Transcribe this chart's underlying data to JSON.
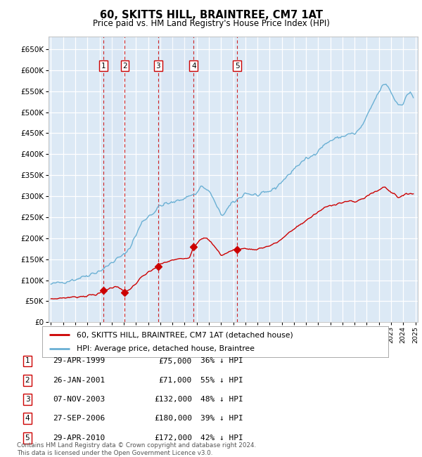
{
  "title": "60, SKITTS HILL, BRAINTREE, CM7 1AT",
  "subtitle": "Price paid vs. HM Land Registry's House Price Index (HPI)",
  "background_color": "#ffffff",
  "plot_bg_color": "#dce9f5",
  "hpi_color": "#6ab0d4",
  "price_color": "#cc0000",
  "grid_color": "#ffffff",
  "ylim": [
    0,
    680000
  ],
  "yticks": [
    0,
    50000,
    100000,
    150000,
    200000,
    250000,
    300000,
    350000,
    400000,
    450000,
    500000,
    550000,
    600000,
    650000
  ],
  "transactions": [
    {
      "num": 1,
      "date": "29-APR-1999",
      "price": 75000,
      "pct": "36%",
      "year": 1999.33
    },
    {
      "num": 2,
      "date": "26-JAN-2001",
      "price": 71000,
      "pct": "55%",
      "year": 2001.08
    },
    {
      "num": 3,
      "date": "07-NOV-2003",
      "price": 132000,
      "pct": "48%",
      "year": 2003.83
    },
    {
      "num": 4,
      "date": "27-SEP-2006",
      "price": 180000,
      "pct": "39%",
      "year": 2006.75
    },
    {
      "num": 5,
      "date": "29-APR-2010",
      "price": 172000,
      "pct": "42%",
      "year": 2010.33
    }
  ],
  "legend_label_red": "60, SKITTS HILL, BRAINTREE, CM7 1AT (detached house)",
  "legend_label_blue": "HPI: Average price, detached house, Braintree",
  "footer": "Contains HM Land Registry data © Crown copyright and database right 2024.\nThis data is licensed under the Open Government Licence v3.0.",
  "x_start_year": 1995,
  "x_end_year": 2025,
  "hpi_key_points": [
    [
      1995.0,
      90000
    ],
    [
      1996.0,
      96000
    ],
    [
      1997.0,
      102000
    ],
    [
      1998.0,
      112000
    ],
    [
      1999.0,
      122000
    ],
    [
      1999.5,
      130000
    ],
    [
      2000.0,
      142000
    ],
    [
      2000.5,
      152000
    ],
    [
      2001.0,
      160000
    ],
    [
      2001.5,
      178000
    ],
    [
      2002.0,
      208000
    ],
    [
      2002.5,
      238000
    ],
    [
      2003.0,
      252000
    ],
    [
      2003.5,
      262000
    ],
    [
      2004.0,
      278000
    ],
    [
      2004.5,
      282000
    ],
    [
      2005.0,
      284000
    ],
    [
      2005.5,
      290000
    ],
    [
      2006.0,
      296000
    ],
    [
      2006.5,
      302000
    ],
    [
      2007.0,
      306000
    ],
    [
      2007.3,
      325000
    ],
    [
      2007.8,
      316000
    ],
    [
      2008.2,
      305000
    ],
    [
      2008.6,
      278000
    ],
    [
      2009.0,
      255000
    ],
    [
      2009.3,
      260000
    ],
    [
      2009.6,
      272000
    ],
    [
      2010.0,
      285000
    ],
    [
      2010.5,
      295000
    ],
    [
      2011.0,
      308000
    ],
    [
      2011.5,
      304000
    ],
    [
      2012.0,
      302000
    ],
    [
      2012.5,
      305000
    ],
    [
      2013.0,
      312000
    ],
    [
      2013.5,
      320000
    ],
    [
      2014.0,
      335000
    ],
    [
      2014.5,
      348000
    ],
    [
      2015.0,
      365000
    ],
    [
      2015.5,
      378000
    ],
    [
      2016.0,
      388000
    ],
    [
      2016.5,
      395000
    ],
    [
      2017.0,
      410000
    ],
    [
      2017.5,
      422000
    ],
    [
      2018.0,
      432000
    ],
    [
      2018.5,
      438000
    ],
    [
      2019.0,
      442000
    ],
    [
      2019.5,
      448000
    ],
    [
      2020.0,
      448000
    ],
    [
      2020.5,
      462000
    ],
    [
      2021.0,
      488000
    ],
    [
      2021.5,
      520000
    ],
    [
      2022.0,
      548000
    ],
    [
      2022.3,
      562000
    ],
    [
      2022.6,
      568000
    ],
    [
      2023.0,
      548000
    ],
    [
      2023.3,
      530000
    ],
    [
      2023.6,
      518000
    ],
    [
      2024.0,
      522000
    ],
    [
      2024.3,
      538000
    ],
    [
      2024.6,
      550000
    ],
    [
      2024.9,
      530000
    ]
  ],
  "price_key_points": [
    [
      1995.0,
      55000
    ],
    [
      1996.0,
      58000
    ],
    [
      1997.0,
      60000
    ],
    [
      1998.0,
      63000
    ],
    [
      1999.0,
      68000
    ],
    [
      1999.33,
      75000
    ],
    [
      1999.6,
      78000
    ],
    [
      2000.0,
      82000
    ],
    [
      2000.5,
      86000
    ],
    [
      2001.08,
      71000
    ],
    [
      2001.4,
      76000
    ],
    [
      2002.0,
      92000
    ],
    [
      2002.5,
      108000
    ],
    [
      2003.0,
      118000
    ],
    [
      2003.5,
      128000
    ],
    [
      2003.83,
      132000
    ],
    [
      2004.0,
      138000
    ],
    [
      2004.5,
      143000
    ],
    [
      2005.0,
      148000
    ],
    [
      2005.5,
      150000
    ],
    [
      2006.0,
      152000
    ],
    [
      2006.4,
      155000
    ],
    [
      2006.75,
      180000
    ],
    [
      2007.0,
      188000
    ],
    [
      2007.3,
      198000
    ],
    [
      2007.6,
      202000
    ],
    [
      2008.0,
      195000
    ],
    [
      2008.4,
      182000
    ],
    [
      2008.8,
      168000
    ],
    [
      2009.0,
      160000
    ],
    [
      2009.3,
      162000
    ],
    [
      2009.7,
      168000
    ],
    [
      2010.0,
      172000
    ],
    [
      2010.33,
      172000
    ],
    [
      2010.7,
      174000
    ],
    [
      2011.0,
      176000
    ],
    [
      2011.5,
      173000
    ],
    [
      2012.0,
      174000
    ],
    [
      2012.5,
      178000
    ],
    [
      2013.0,
      182000
    ],
    [
      2013.5,
      188000
    ],
    [
      2014.0,
      198000
    ],
    [
      2014.5,
      210000
    ],
    [
      2015.0,
      222000
    ],
    [
      2015.5,
      232000
    ],
    [
      2016.0,
      242000
    ],
    [
      2016.5,
      252000
    ],
    [
      2017.0,
      262000
    ],
    [
      2017.5,
      272000
    ],
    [
      2018.0,
      278000
    ],
    [
      2018.5,
      282000
    ],
    [
      2019.0,
      285000
    ],
    [
      2019.5,
      288000
    ],
    [
      2020.0,
      286000
    ],
    [
      2020.5,
      292000
    ],
    [
      2021.0,
      300000
    ],
    [
      2021.5,
      308000
    ],
    [
      2022.0,
      315000
    ],
    [
      2022.3,
      320000
    ],
    [
      2022.5,
      322000
    ],
    [
      2023.0,
      310000
    ],
    [
      2023.3,
      305000
    ],
    [
      2023.6,
      298000
    ],
    [
      2024.0,
      300000
    ],
    [
      2024.3,
      305000
    ],
    [
      2024.6,
      308000
    ],
    [
      2024.9,
      305000
    ]
  ]
}
